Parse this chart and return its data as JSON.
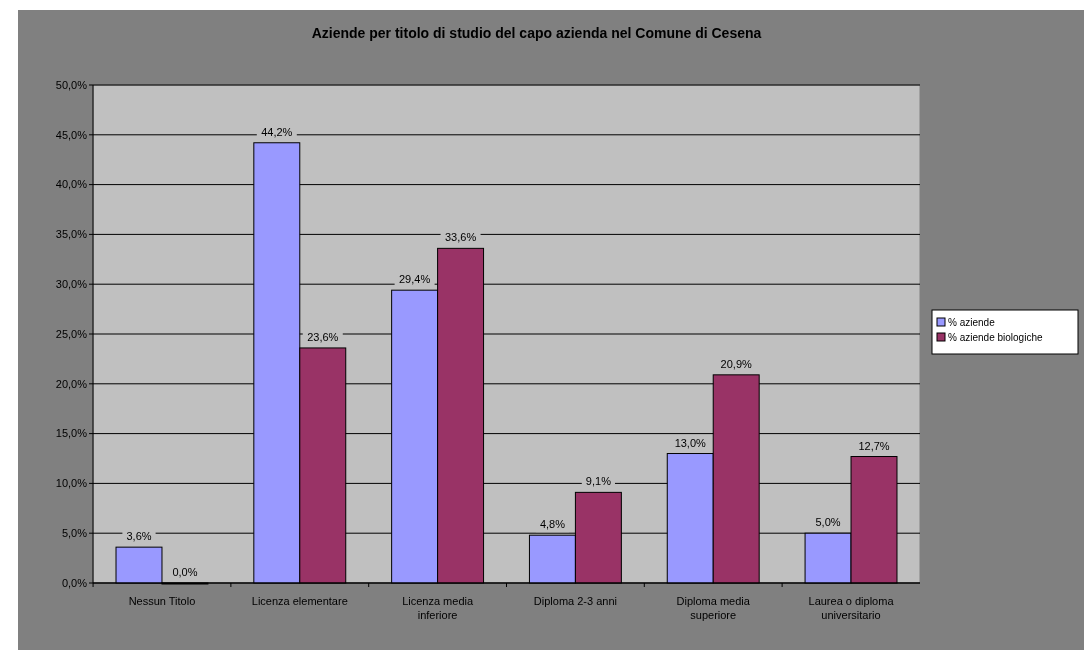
{
  "chart_data": {
    "type": "bar",
    "title": "Aziende per titolo di studio del capo azienda nel Comune di Cesena",
    "categories": [
      "Nessun Titolo",
      "Licenza elementare",
      "Licenza media inferiore",
      "Diploma 2-3 anni",
      "Diploma media superiore",
      "Laurea o diploma universitario"
    ],
    "series": [
      {
        "name": "% aziende",
        "color": "#9999ff",
        "values": [
          3.6,
          44.2,
          29.4,
          4.8,
          13.0,
          5.0
        ],
        "value_labels": [
          "3,6%",
          "44,2%",
          "29,4%",
          "4,8%",
          "13,0%",
          "5,0%"
        ]
      },
      {
        "name": "% aziende biologiche",
        "color": "#993366",
        "values": [
          0.0,
          23.6,
          33.6,
          9.1,
          20.9,
          12.7
        ],
        "value_labels": [
          "0,0%",
          "23,6%",
          "33,6%",
          "9,1%",
          "20,9%",
          "12,7%"
        ]
      }
    ],
    "ylim": [
      0,
      50
    ],
    "yticks": [
      {
        "value": 0,
        "label": "0,0%"
      },
      {
        "value": 5,
        "label": "5,0%"
      },
      {
        "value": 10,
        "label": "10,0%"
      },
      {
        "value": 15,
        "label": "15,0%"
      },
      {
        "value": 20,
        "label": "20,0%"
      },
      {
        "value": 25,
        "label": "25,0%"
      },
      {
        "value": 30,
        "label": "30,0%"
      },
      {
        "value": 35,
        "label": "35,0%"
      },
      {
        "value": 40,
        "label": "40,0%"
      },
      {
        "value": 45,
        "label": "45,0%"
      },
      {
        "value": 50,
        "label": "50,0%"
      }
    ],
    "grid": "y",
    "legend": "right"
  }
}
